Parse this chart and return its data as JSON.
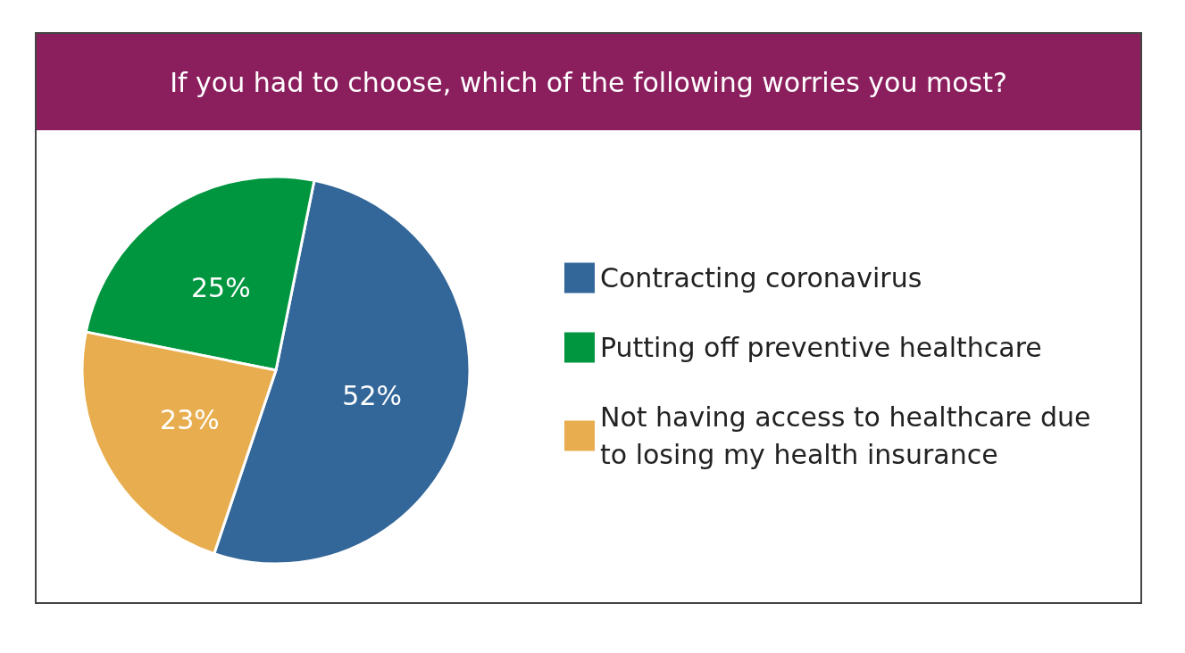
{
  "chart_data": {
    "type": "pie",
    "title": "If you had to choose, which of the following worries you most?",
    "categories": [
      "Contracting coronavirus",
      "Putting off preventive healthcare",
      "Not having access to healthcare due to losing my health insurance"
    ],
    "values": [
      52,
      25,
      23
    ],
    "colors": [
      "#336699",
      "#00963f",
      "#e8ad4e"
    ],
    "value_labels": [
      "52%",
      "25%",
      "23%"
    ],
    "legend": "right"
  }
}
